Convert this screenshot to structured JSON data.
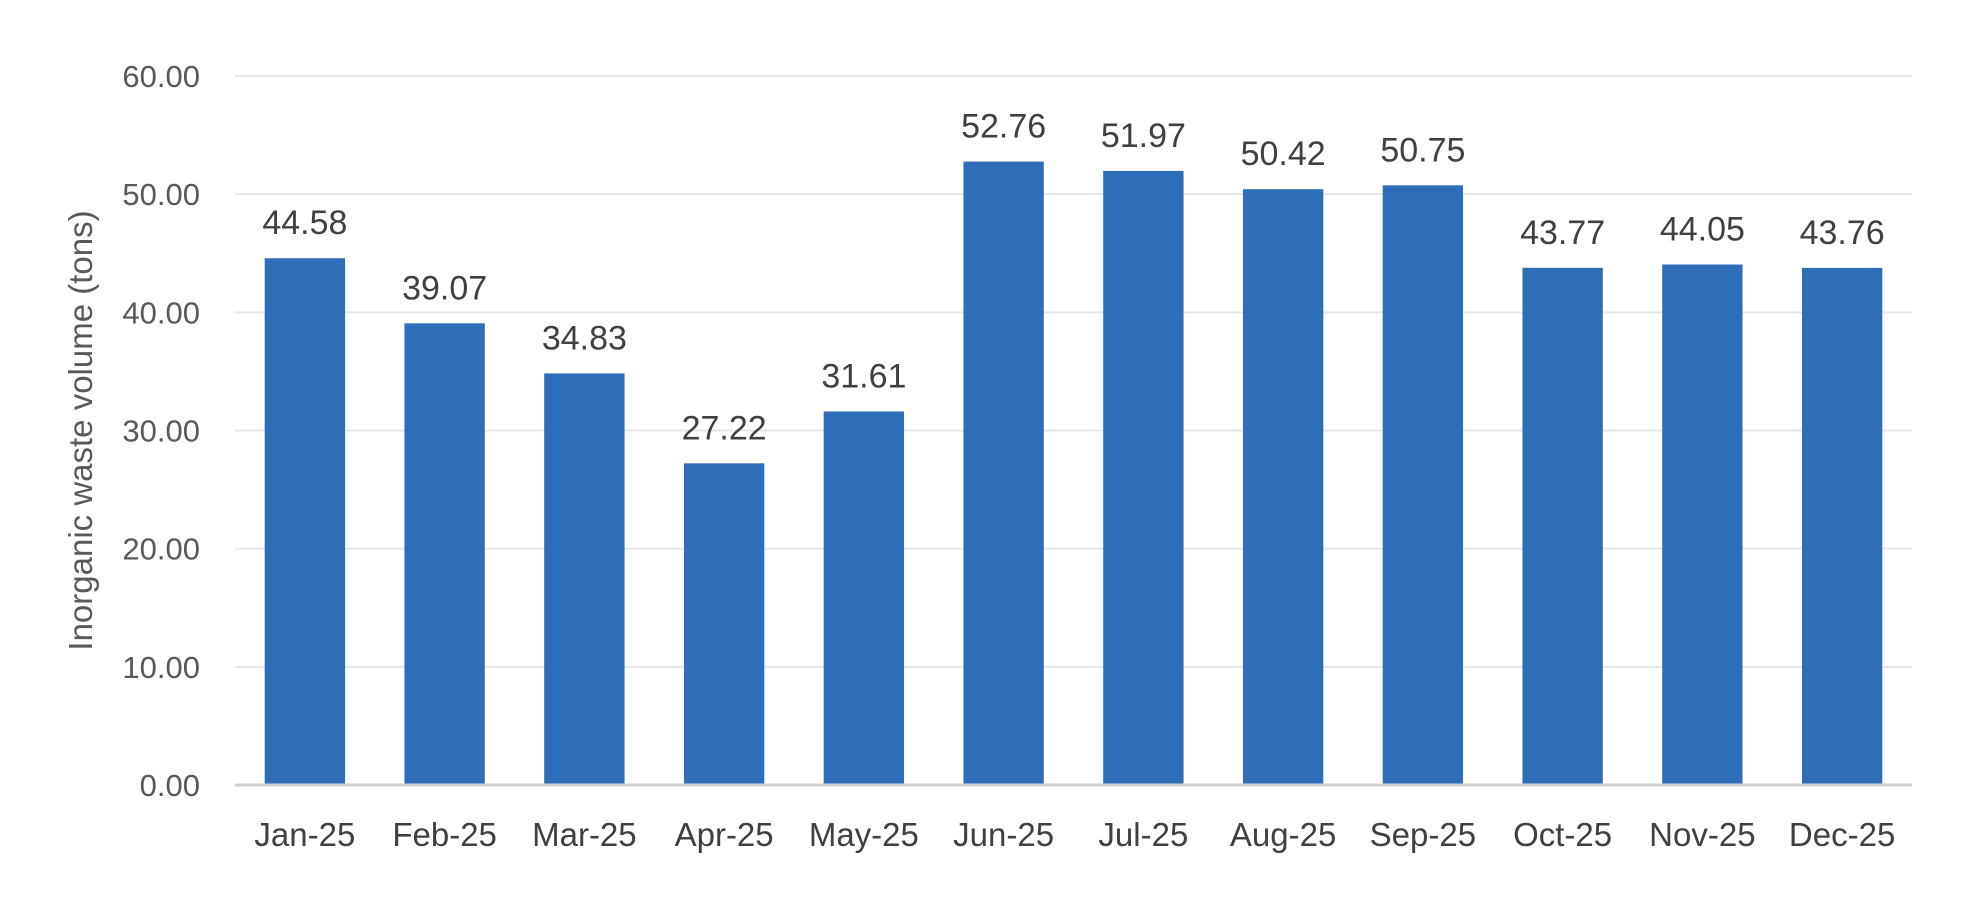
{
  "chart_data": {
    "type": "bar",
    "title": "",
    "xlabel": "",
    "ylabel": "Inorganic waste volume (tons)",
    "categories": [
      "Jan-25",
      "Feb-25",
      "Mar-25",
      "Apr-25",
      "May-25",
      "Jun-25",
      "Jul-25",
      "Aug-25",
      "Sep-25",
      "Oct-25",
      "Nov-25",
      "Dec-25"
    ],
    "values": [
      44.58,
      39.07,
      34.83,
      27.22,
      31.61,
      52.76,
      51.97,
      50.42,
      50.75,
      43.77,
      44.05,
      43.76
    ],
    "data_labels": [
      "44.58",
      "39.07",
      "34.83",
      "27.22",
      "31.61",
      "52.76",
      "51.97",
      "50.42",
      "50.75",
      "43.77",
      "44.05",
      "43.76"
    ],
    "ylim": [
      0,
      60
    ],
    "yticks": [
      0,
      10,
      20,
      30,
      40,
      50,
      60
    ],
    "ytick_labels": [
      "0.00",
      "10.00",
      "20.00",
      "30.00",
      "40.00",
      "50.00",
      "60.00"
    ],
    "grid": true,
    "legend": "none",
    "bar_color": "#2E6DB8",
    "grid_color": "#E6E6E6",
    "axis_color": "#D0D0D0"
  }
}
